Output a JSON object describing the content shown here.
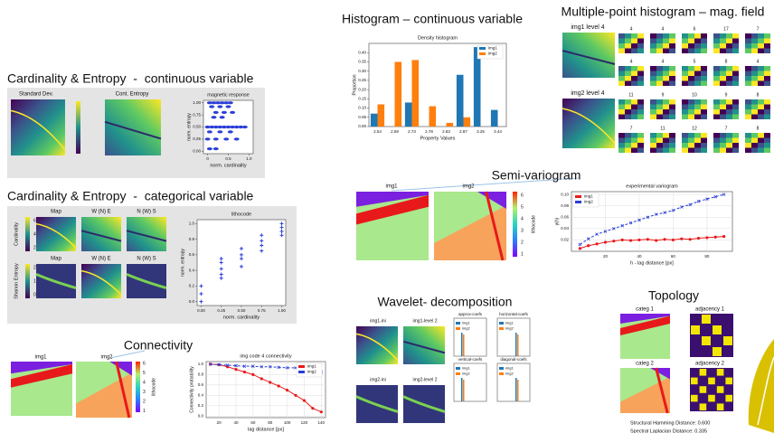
{
  "slide": {
    "titles": [
      "Cardinality & Entropy  -  continuous variable",
      "Cardinality & Entropy  -  categorical variable",
      "Connectivity",
      "Histogram – continuous variable",
      "Multiple-point histogram – mag. field",
      "Semi-variogram",
      "Wavelet- decomposition",
      "Topology"
    ],
    "cont_panels": [
      "Standard Dev.",
      "Cont. Entropy"
    ],
    "cat_panels": [
      "Map",
      "W (N) E",
      "N (W) S"
    ],
    "cat_colorbars": [
      {
        "label": "Cardinality",
        "ticks": [
          "6",
          "4",
          "2"
        ]
      },
      {
        "label": "Shanon Entropy",
        "ticks": [
          "2",
          "1",
          "0"
        ]
      }
    ],
    "image_labels": [
      "img1",
      "img2"
    ],
    "lithocode": {
      "label": "lithocode",
      "ticks": [
        "6",
        "5",
        "4",
        "3",
        "2",
        "1"
      ]
    },
    "mph": {
      "big": [
        "img1 level 4",
        "img2 level 4"
      ],
      "counts": [
        [
          "4",
          "4",
          "6",
          "17",
          "7"
        ],
        [
          "4",
          "4",
          "5",
          "8",
          "4"
        ],
        [
          "11",
          "9",
          "10",
          "9",
          "8"
        ],
        [
          "7",
          "11",
          "12",
          "7",
          "8"
        ]
      ]
    },
    "wavelet": {
      "images": [
        "img1-ini",
        "img1-level 2",
        "img2-ini",
        "img2-level 2"
      ],
      "coefs": [
        "approx-coefs",
        "horizontal-coefs",
        "vertical-coefs",
        "diagonal-coefs"
      ],
      "legend": [
        "img1",
        "img2"
      ]
    },
    "topology": {
      "panels": [
        "categ 1",
        "adjacency 1",
        "categ 2",
        "adjacency 2"
      ],
      "metrics": [
        "Structural Hamming Distance: 0.600",
        "Spectral Laplacian Distance: 0.335"
      ]
    }
  },
  "chart_data": [
    {
      "type": "bar",
      "title": "Density histogram",
      "x_label": "Property Values",
      "y_label": "Proportion",
      "categories": [
        "2.54",
        "2.59",
        "2.73",
        "2.78",
        "2.83",
        "2.87",
        "3.25",
        "3.44"
      ],
      "series": [
        {
          "name": "img1",
          "color": "#1f77b4",
          "values": [
            0.07,
            0,
            0.13,
            0,
            0,
            0.28,
            0.43,
            0.09
          ]
        },
        {
          "name": "img2",
          "color": "#ff7f0e",
          "values": [
            0.12,
            0.35,
            0.36,
            0.11,
            0.02,
            0.05,
            0,
            0
          ]
        }
      ],
      "ylim": [
        0,
        0.45
      ],
      "yticks": [
        {
          "value": 0,
          "label": "0.00"
        },
        0.05,
        {
          "value": 0.1,
          "label": "0.10"
        },
        0.15,
        {
          "value": 0.2,
          "label": "0.20"
        },
        0.25,
        {
          "value": 0.3,
          "label": "0.30"
        },
        0.35,
        {
          "value": 0.4,
          "label": "0.40"
        }
      ],
      "grid": false,
      "legend": "upper right"
    },
    {
      "type": "line",
      "title": "experimental variogram",
      "x_label": "h - lag distance [px]",
      "y_label": "γ(h)",
      "x": [
        5,
        10,
        15,
        20,
        25,
        30,
        35,
        40,
        45,
        50,
        55,
        60,
        65,
        70,
        75,
        80,
        85,
        90
      ],
      "series": [
        {
          "name": "img1",
          "color": "#e8191b",
          "dashed": false,
          "values": [
            0.005,
            0.01,
            0.013,
            0.016,
            0.018,
            0.02,
            0.019,
            0.02,
            0.021,
            0.019,
            0.021,
            0.02,
            0.022,
            0.021,
            0.023,
            0.024,
            0.025,
            0.026
          ]
        },
        {
          "name": "img2",
          "color": "#2b3fd6",
          "dashed": true,
          "values": [
            0.012,
            0.022,
            0.03,
            0.035,
            0.04,
            0.045,
            0.05,
            0.055,
            0.06,
            0.065,
            0.068,
            0.072,
            0.078,
            0.082,
            0.088,
            0.092,
            0.096,
            0.1
          ]
        }
      ],
      "xlim": [
        0,
        95
      ],
      "xticks": [
        20,
        40,
        60,
        80
      ],
      "ylim": [
        0,
        0.105
      ],
      "yticks": [
        0.02,
        0.04,
        0.06,
        0.08,
        {
          "value": 0.1,
          "label": "0.10"
        }
      ],
      "grid": true,
      "legend": "upper left"
    },
    {
      "type": "line",
      "title": "img code 4 connectivity",
      "x_label": "lag distance [px]",
      "y_label": "Connectivity probability",
      "x": [
        10,
        20,
        30,
        40,
        50,
        60,
        70,
        80,
        90,
        100,
        110,
        120,
        130,
        140
      ],
      "series": [
        {
          "name": "img1",
          "color": "#e8191b",
          "dashed": false,
          "values": [
            1.0,
            0.99,
            0.95,
            0.9,
            0.85,
            0.8,
            0.72,
            0.65,
            0.58,
            0.5,
            0.4,
            0.3,
            0.15,
            0.08
          ]
        },
        {
          "name": "img2",
          "color": "#2b3fd6",
          "dashed": true,
          "values": [
            1.0,
            0.99,
            0.98,
            0.97,
            0.96,
            0.96,
            0.95,
            0.95,
            0.94,
            0.93,
            0.93,
            0.94,
            0.9,
            0.85
          ]
        }
      ],
      "xlim": [
        5,
        145
      ],
      "xticks": [
        20,
        40,
        60,
        80,
        100,
        120,
        140
      ],
      "ylim": [
        -0.03,
        1.05
      ],
      "yticks": [
        {
          "value": 0,
          "label": "0.0"
        },
        0.2,
        0.4,
        0.6,
        0.8,
        {
          "value": 1,
          "label": "1.0"
        }
      ],
      "grid": true,
      "legend": "upper right"
    },
    {
      "type": "scatter",
      "title": "lithocode",
      "x_label": "norm. cardinality",
      "y_label": "norm. entropy",
      "color": "#2b3fd6",
      "marker": "plus",
      "x": [
        0,
        0,
        0,
        0.25,
        0.25,
        0.25,
        0.25,
        0.25,
        0.5,
        0.5,
        0.5,
        0.5,
        0.75,
        0.75,
        0.75,
        0.75,
        1,
        1,
        1,
        1
      ],
      "y": [
        0,
        0.1,
        0.2,
        0.3,
        0.35,
        0.42,
        0.5,
        0.55,
        0.45,
        0.55,
        0.6,
        0.68,
        0.65,
        0.72,
        0.78,
        0.85,
        0.85,
        0.9,
        0.95,
        1
      ],
      "xlim": [
        -0.05,
        1.05
      ],
      "xticks": [
        {
          "value": 0,
          "label": "0.00"
        },
        0.25,
        {
          "value": 0.5,
          "label": "0.50"
        },
        0.75,
        {
          "value": 1,
          "label": "1.00"
        }
      ],
      "ylim": [
        -0.05,
        1.05
      ],
      "yticks": [
        {
          "value": 0,
          "label": "0.0"
        },
        0.2,
        0.4,
        0.6,
        0.8,
        {
          "value": 1,
          "label": "1.0"
        }
      ],
      "grid": false
    },
    {
      "type": "scatter",
      "title": "magnetic response",
      "x_label": "norm. cardinality",
      "y_label": "norm. entropy",
      "color": "#2b3fd6",
      "marker": "dot",
      "x": [
        0.05,
        0.15,
        0.25,
        0.35,
        0.45,
        0.55,
        0.1,
        0.3,
        0.5,
        0.2,
        0.4,
        0.6,
        0.15,
        0.35,
        0,
        0.1,
        0.2,
        0.3,
        0.4,
        0.5,
        0.6,
        0.7,
        0.8,
        0.9,
        0.05,
        0.3,
        0.55,
        0,
        0.2,
        0.45,
        0.7,
        0.05,
        0.2
      ],
      "y": [
        1,
        1,
        1,
        1,
        1,
        1,
        0.92,
        0.92,
        0.92,
        0.8,
        0.8,
        0.8,
        0.7,
        0.7,
        0.5,
        0.5,
        0.5,
        0.5,
        0.5,
        0.5,
        0.5,
        0.5,
        0.5,
        0.5,
        0.4,
        0.4,
        0.4,
        0.25,
        0.25,
        0.25,
        0.25,
        0.05,
        0.05
      ],
      "xlim": [
        -0.1,
        1.1
      ],
      "xticks": [
        0,
        0.5,
        {
          "value": 1,
          "label": "1.0"
        }
      ],
      "ylim": [
        -0.05,
        1.05
      ],
      "yticks": [
        {
          "value": 0,
          "label": "0.00"
        },
        0.25,
        {
          "value": 0.5,
          "label": "0.50"
        },
        0.75,
        {
          "value": 1,
          "label": "1.00"
        }
      ],
      "grid": false
    }
  ]
}
